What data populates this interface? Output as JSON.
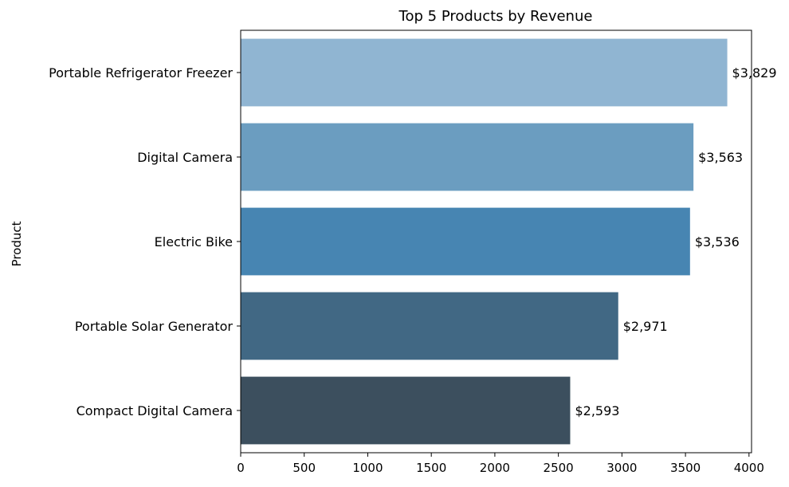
{
  "chart_data": {
    "type": "bar",
    "orientation": "horizontal",
    "title": "Top 5 Products by Revenue",
    "xlabel": "",
    "ylabel": "Product",
    "xlim": [
      0,
      4020
    ],
    "xticks": [
      0,
      500,
      1000,
      1500,
      2000,
      2500,
      3000,
      3500,
      4000
    ],
    "categories": [
      "Portable Refrigerator Freezer",
      "Digital Camera",
      "Electric Bike",
      "Portable Solar Generator",
      "Compact Digital Camera"
    ],
    "values": [
      3829,
      3563,
      3536,
      2971,
      2593
    ],
    "data_labels": [
      "$3,829",
      "$3,563",
      "$3,536",
      "$2,971",
      "$2,593"
    ],
    "colors": [
      "#90b5d2",
      "#6b9dc0",
      "#4785b2",
      "#416884",
      "#3c4f5e"
    ],
    "grid": false,
    "legend": "none"
  }
}
